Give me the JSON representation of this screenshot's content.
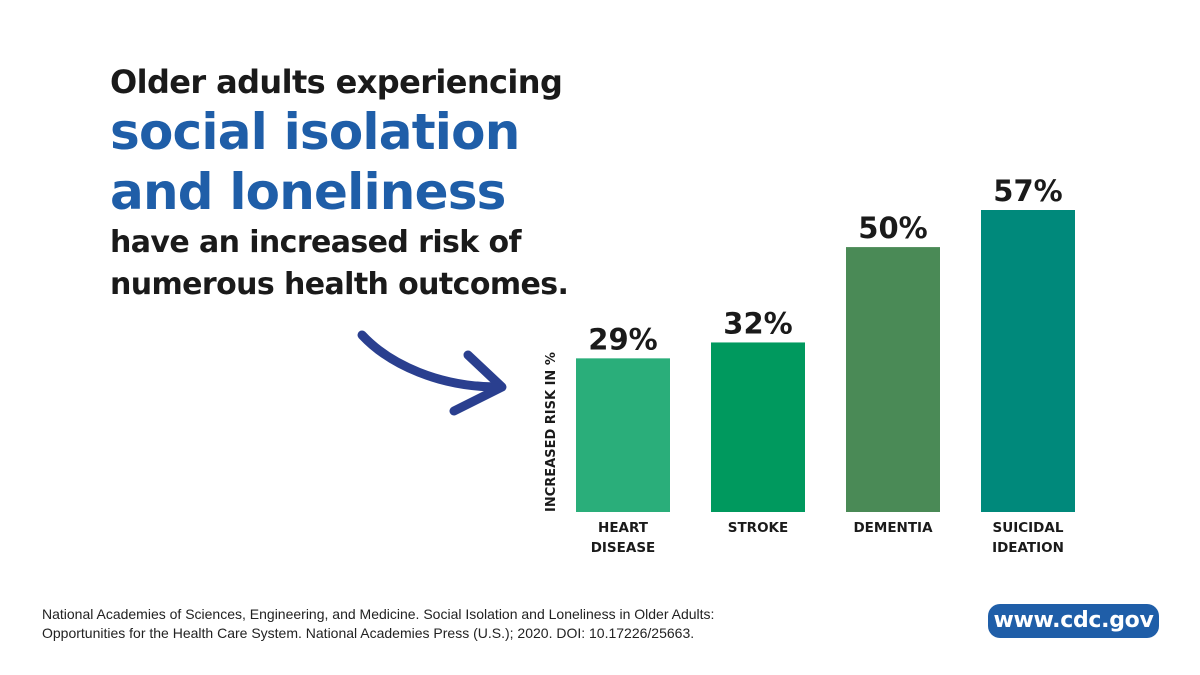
{
  "headline": {
    "line1": "Older adults experiencing",
    "emphasis_line1": "social isolation",
    "emphasis_line2": "and loneliness",
    "line3": "have an increased risk of",
    "line4": "numerous health outcomes."
  },
  "source": {
    "line1": "National Academies of Sciences, Engineering, and Medicine. Social Isolation and Loneliness in Older Adults:",
    "line2": "Opportunities for the Health Care System. National Academies Press (U.S.); 2020. DOI: 10.17226/25663."
  },
  "website": "www.cdc.gov",
  "colors": {
    "headline_blue": "#1f5ea8",
    "arrow": "#2a3f8f",
    "badge": "#1f5ea8"
  },
  "chart_data": {
    "type": "bar",
    "ylabel": "INCREASED RISK IN %",
    "categories": [
      [
        "HEART",
        "DISEASE"
      ],
      [
        "STROKE"
      ],
      [
        "DEMENTIA"
      ],
      [
        "SUICIDAL",
        "IDEATION"
      ]
    ],
    "values": [
      29,
      32,
      50,
      57
    ],
    "value_labels": [
      "29%",
      "32%",
      "50%",
      "57%"
    ],
    "colors": [
      "#2aae7a",
      "#00995e",
      "#4a8a56",
      "#00897b"
    ],
    "ylim": [
      0,
      57
    ],
    "grid": false,
    "legend": "none"
  }
}
